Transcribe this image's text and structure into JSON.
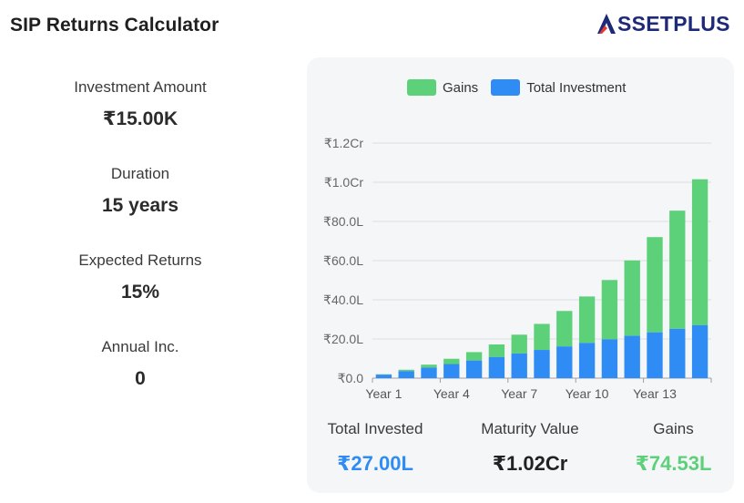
{
  "header": {
    "title": "SIP Returns Calculator",
    "logo_text": "SSETPLUS",
    "logo_icon": "assetplus-a-logo-icon"
  },
  "params": [
    {
      "label": "Investment Amount",
      "value": "₹15.00K"
    },
    {
      "label": "Duration",
      "value": "15 years"
    },
    {
      "label": "Expected Returns",
      "value": "15%"
    },
    {
      "label": "Annual Inc.",
      "value": "0"
    }
  ],
  "legend": {
    "gains": "Gains",
    "total_investment": "Total Investment"
  },
  "colors": {
    "gains": "#5dd07a",
    "total_investment": "#2f8cf4",
    "gains_text": "#5dd07a",
    "invested_text": "#2f8cf4",
    "brand_navy": "#1e2a78",
    "brand_red": "#e53935"
  },
  "chart_data": {
    "type": "bar",
    "stacked": true,
    "categories": [
      "Year 1",
      "Year 2",
      "Year 3",
      "Year 4",
      "Year 5",
      "Year 6",
      "Year 7",
      "Year 8",
      "Year 9",
      "Year 10",
      "Year 11",
      "Year 12",
      "Year 13",
      "Year 14",
      "Year 15"
    ],
    "x_tick_labels": [
      "Year 1",
      "Year 4",
      "Year 7",
      "Year 10",
      "Year 13"
    ],
    "x_tick_indices": [
      0,
      3,
      6,
      9,
      12
    ],
    "y_tick_labels": [
      "₹0.0",
      "₹20.0L",
      "₹40.0L",
      "₹60.0L",
      "₹80.0L",
      "₹1.0Cr",
      "₹1.2Cr"
    ],
    "y_tick_values": [
      0,
      20,
      40,
      60,
      80,
      100,
      120
    ],
    "ylim": [
      0,
      120
    ],
    "unit": "Lakh",
    "series": [
      {
        "name": "Total Investment",
        "values": [
          1.8,
          3.6,
          5.4,
          7.2,
          9.0,
          10.8,
          12.6,
          14.4,
          16.2,
          18.0,
          19.8,
          21.6,
          23.4,
          25.2,
          27.0
        ]
      },
      {
        "name": "Gains",
        "values": [
          0.2,
          0.7,
          1.5,
          2.7,
          4.3,
          6.4,
          9.6,
          13.3,
          18.1,
          23.7,
          30.3,
          38.5,
          48.6,
          60.3,
          74.53
        ]
      }
    ],
    "grid": true,
    "legend_position": "top-center"
  },
  "summary": [
    {
      "label": "Total Invested",
      "value": "₹27.00L"
    },
    {
      "label": "Maturity Value",
      "value": "₹1.02Cr"
    },
    {
      "label": "Gains",
      "value": "₹74.53L"
    }
  ]
}
